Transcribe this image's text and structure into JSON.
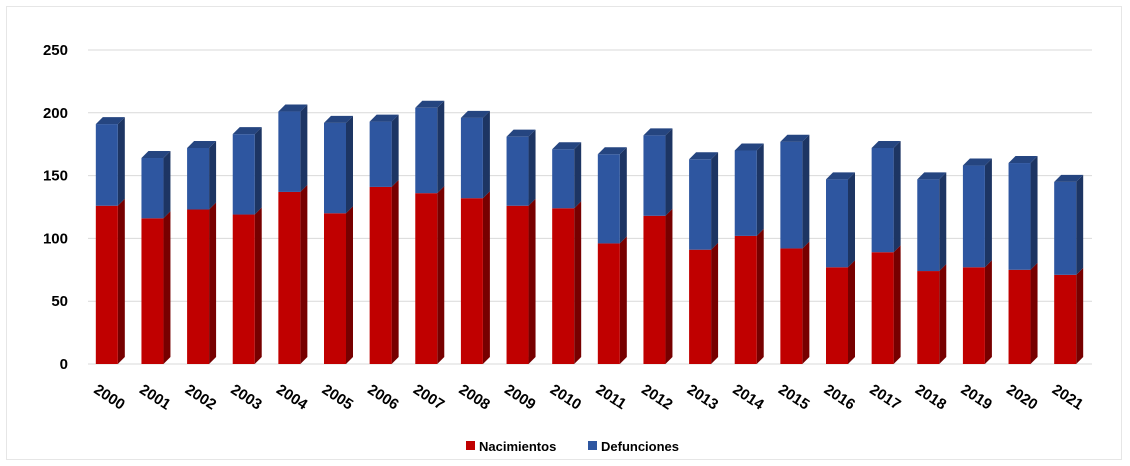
{
  "chart_data": {
    "type": "bar",
    "stacked": true,
    "categories": [
      "2000",
      "2001",
      "2002",
      "2003",
      "2004",
      "2005",
      "2006",
      "2007",
      "2008",
      "2009",
      "2010",
      "2011",
      "2012",
      "2013",
      "2014",
      "2015",
      "2016",
      "2017",
      "2018",
      "2019",
      "2020",
      "2021"
    ],
    "series": [
      {
        "name": "Nacimientos",
        "color": "#c00000",
        "values": [
          126,
          116,
          123,
          119,
          137,
          120,
          141,
          136,
          132,
          126,
          124,
          96,
          118,
          91,
          102,
          92,
          77,
          89,
          74,
          77,
          75,
          71
        ]
      },
      {
        "name": "Defunciones",
        "color": "#2e56a0",
        "values": [
          65,
          48,
          49,
          64,
          64,
          72,
          52,
          68,
          64,
          55,
          47,
          71,
          64,
          72,
          68,
          85,
          70,
          83,
          73,
          81,
          85,
          74
        ]
      }
    ],
    "yticks": [
      "0",
      "50",
      "100",
      "150",
      "200",
      "250"
    ],
    "ylim": [
      0,
      250
    ],
    "grid": true,
    "legend_position": "bottom",
    "title": "",
    "xlabel": "",
    "ylabel": ""
  }
}
